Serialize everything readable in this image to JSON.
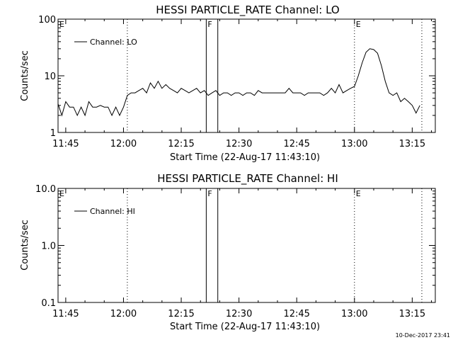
{
  "footer_timestamp": "10-Dec-2017 23:41",
  "chart_data": [
    {
      "type": "line",
      "title": "HESSI PARTICLE_RATE Channel: LO",
      "xlabel": "Start Time (22-Aug-17 11:43:10)",
      "ylabel": "Counts/sec",
      "yscale": "log",
      "ylim": [
        1,
        100
      ],
      "xlim": [
        "11:43",
        "13:21"
      ],
      "xticks": [
        "11:45",
        "12:00",
        "12:15",
        "12:30",
        "12:45",
        "13:00",
        "13:15"
      ],
      "yticks": [
        "1",
        "10",
        "100"
      ],
      "legend": {
        "label": "Channel: LO",
        "position": "top-left"
      },
      "markers": [
        {
          "label": "E",
          "time": "11:43",
          "style": "dotted"
        },
        {
          "label": "",
          "time": "12:01",
          "style": "dotted"
        },
        {
          "label": "F",
          "time": "12:21.5",
          "style": "solid"
        },
        {
          "label": "",
          "time": "12:24.5",
          "style": "solid"
        },
        {
          "label": "E",
          "time": "13:00",
          "style": "dotted"
        },
        {
          "label": "",
          "time": "13:17.5",
          "style": "dotted"
        }
      ],
      "series": [
        {
          "name": "Channel: LO",
          "x": [
            "11:43",
            "11:44",
            "11:45",
            "11:46",
            "11:47",
            "11:48",
            "11:49",
            "11:50",
            "11:51",
            "11:52",
            "11:53",
            "11:54",
            "11:55",
            "11:56",
            "11:57",
            "11:58",
            "11:59",
            "12:00",
            "12:01",
            "12:02",
            "12:03",
            "12:04",
            "12:05",
            "12:06",
            "12:07",
            "12:08",
            "12:09",
            "12:10",
            "12:11",
            "12:12",
            "12:13",
            "12:14",
            "12:15",
            "12:16",
            "12:17",
            "12:18",
            "12:19",
            "12:20",
            "12:21",
            "12:22",
            "12:23",
            "12:24",
            "12:25",
            "12:26",
            "12:27",
            "12:28",
            "12:29",
            "12:30",
            "12:31",
            "12:32",
            "12:33",
            "12:34",
            "12:35",
            "12:36",
            "12:37",
            "12:38",
            "12:39",
            "12:40",
            "12:41",
            "12:42",
            "12:43",
            "12:44",
            "12:45",
            "12:46",
            "12:47",
            "12:48",
            "12:49",
            "12:50",
            "12:51",
            "12:52",
            "12:53",
            "12:54",
            "12:55",
            "12:56",
            "12:57",
            "12:58",
            "12:59",
            "13:00",
            "13:01",
            "13:02",
            "13:03",
            "13:04",
            "13:05",
            "13:06",
            "13:07",
            "13:08",
            "13:09",
            "13:10",
            "13:11",
            "13:12",
            "13:13",
            "13:14",
            "13:15",
            "13:16",
            "13:17"
          ],
          "values": [
            3.2,
            2.0,
            3.5,
            2.8,
            2.8,
            2.0,
            2.8,
            2.0,
            3.5,
            2.8,
            2.8,
            3.0,
            2.8,
            2.8,
            2.0,
            2.8,
            2.0,
            2.8,
            4.5,
            5.0,
            5.0,
            5.5,
            6.0,
            5.0,
            7.5,
            6.0,
            8.0,
            6.0,
            7.0,
            6.0,
            5.5,
            5.0,
            6.0,
            5.5,
            5.0,
            5.5,
            6.0,
            5.0,
            5.5,
            4.5,
            5.0,
            5.5,
            4.5,
            5.0,
            5.0,
            4.5,
            5.0,
            5.0,
            4.5,
            5.0,
            5.0,
            4.5,
            5.5,
            5.0,
            5.0,
            5.0,
            5.0,
            5.0,
            5.0,
            5.0,
            6.0,
            5.0,
            5.0,
            5.0,
            4.5,
            5.0,
            5.0,
            5.0,
            5.0,
            4.5,
            5.0,
            6.0,
            5.0,
            7.0,
            5.0,
            5.5,
            6.0,
            6.5,
            10.0,
            17.0,
            26.0,
            30.0,
            29.0,
            25.0,
            15.0,
            8.0,
            5.0,
            4.5,
            5.0,
            3.5,
            4.0,
            3.5,
            3.0,
            2.2,
            3.0
          ]
        }
      ]
    },
    {
      "type": "line",
      "title": "HESSI PARTICLE_RATE Channel: HI",
      "xlabel": "Start Time (22-Aug-17 11:43:10)",
      "ylabel": "Counts/sec",
      "yscale": "log",
      "ylim": [
        0.1,
        10
      ],
      "xlim": [
        "11:43",
        "13:21"
      ],
      "xticks": [
        "11:45",
        "12:00",
        "12:15",
        "12:30",
        "12:45",
        "13:00",
        "13:15"
      ],
      "yticks": [
        "0.1",
        "1.0",
        "10.0"
      ],
      "legend": {
        "label": "Channel: HI",
        "position": "top-left"
      },
      "markers": [
        {
          "label": "E",
          "time": "11:43",
          "style": "dotted"
        },
        {
          "label": "",
          "time": "12:01",
          "style": "dotted"
        },
        {
          "label": "F",
          "time": "12:21.5",
          "style": "solid"
        },
        {
          "label": "",
          "time": "12:24.5",
          "style": "solid"
        },
        {
          "label": "E",
          "time": "13:00",
          "style": "dotted"
        },
        {
          "label": "",
          "time": "13:17.5",
          "style": "dotted"
        }
      ],
      "series": []
    }
  ]
}
